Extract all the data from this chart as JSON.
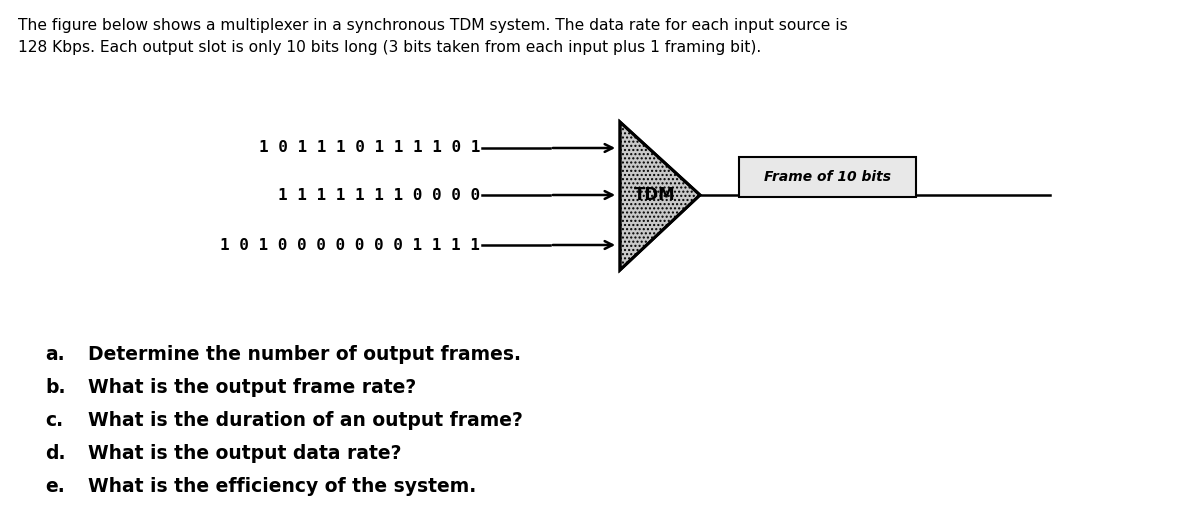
{
  "title_line1": "The figure below shows a multiplexer in a synchronous TDM system. The data rate for each input source is",
  "title_line2": "128 Kbps. Each output slot is only 10 bits long (3 bits taken from each input plus 1 framing bit).",
  "input1": "1 0 1 1 1 0 1 1 1 1 0 1",
  "input2": "1 1 1 1 1 1 1 0 0 0 0",
  "input3": "1 0 1 0 0 0 0 0 0 0 1 1 1 1",
  "tdm_label": "TDM",
  "frame_label": "Frame of 10 bits",
  "questions": [
    [
      "a.",
      "  Determine the number of output frames."
    ],
    [
      "b.",
      "  What is the output frame rate?"
    ],
    [
      "c.",
      "  What is the duration of an output frame?"
    ],
    [
      "d.",
      "  What is the output data rate?"
    ],
    [
      "e.",
      "  What is the efficiency of the system."
    ]
  ],
  "bg_color": "#ffffff",
  "text_color": "#000000",
  "title_fontsize": 11.2,
  "input_fontsize": 11.5,
  "question_fontsize": 13.5,
  "tri_hatch_color": "#c8c8c8",
  "frame_box_color": "#e8e8e8"
}
